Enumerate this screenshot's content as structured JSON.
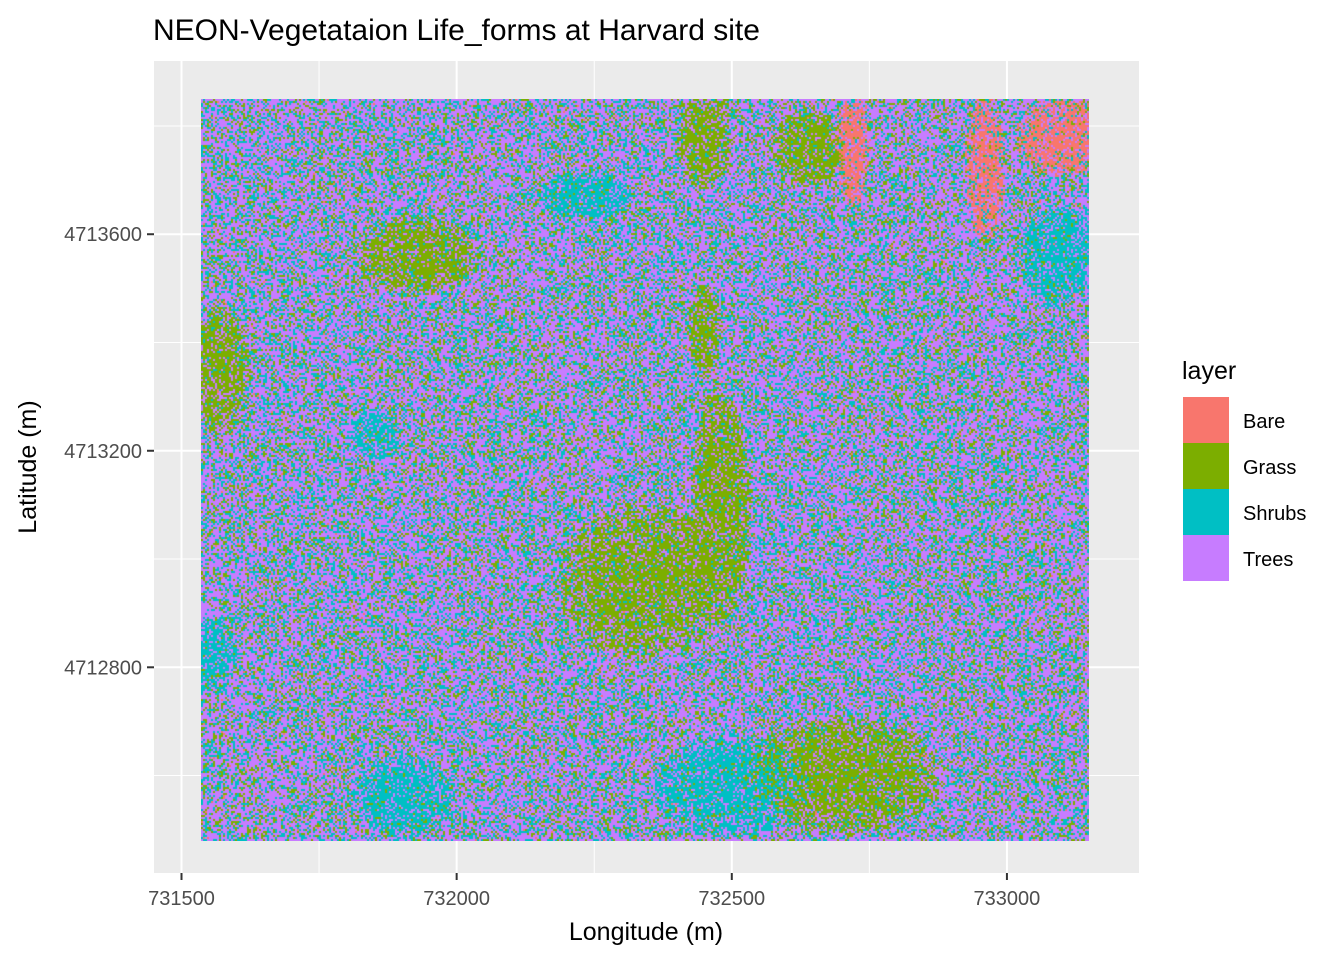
{
  "chart_data": {
    "type": "heatmap",
    "title": "NEON-Vegetataion Life_forms at Harvard site",
    "xlabel": "Longitude (m)",
    "ylabel": "Latitude (m)",
    "xlim": [
      731450,
      733240
    ],
    "ylim": [
      4712420,
      4713920
    ],
    "raster_extent": {
      "x": [
        731535,
        733150
      ],
      "y": [
        4712480,
        4713850
      ]
    },
    "x_ticks": [
      731500,
      732000,
      732500,
      733000
    ],
    "x_tick_labels": [
      "731500",
      "732000",
      "732500",
      "733000"
    ],
    "y_ticks": [
      4712800,
      4713200,
      4713600
    ],
    "y_tick_labels": [
      "4712800",
      "4713200",
      "4713600"
    ],
    "grid": true,
    "panel_background": "#ebebeb",
    "legend": {
      "title": "layer",
      "position": "right",
      "entries": [
        {
          "label": "Bare",
          "color": "#f8766d"
        },
        {
          "label": "Grass",
          "color": "#7cae00"
        },
        {
          "label": "Shrubs",
          "color": "#00bfc4"
        },
        {
          "label": "Trees",
          "color": "#c77cff"
        }
      ]
    },
    "dominant_class": "Trees",
    "patches": [
      {
        "class": "Bare",
        "x": 733100,
        "y": 4713780,
        "rx": 70,
        "ry": 60
      },
      {
        "class": "Bare",
        "x": 732960,
        "y": 4713720,
        "rx": 30,
        "ry": 110
      },
      {
        "class": "Bare",
        "x": 732720,
        "y": 4713760,
        "rx": 25,
        "ry": 90
      },
      {
        "class": "Grass",
        "x": 731930,
        "y": 4713560,
        "rx": 90,
        "ry": 60
      },
      {
        "class": "Grass",
        "x": 732450,
        "y": 4713420,
        "rx": 25,
        "ry": 70
      },
      {
        "class": "Grass",
        "x": 732480,
        "y": 4713100,
        "rx": 45,
        "ry": 180
      },
      {
        "class": "Grass",
        "x": 732340,
        "y": 4712960,
        "rx": 130,
        "ry": 120
      },
      {
        "class": "Grass",
        "x": 732450,
        "y": 4713780,
        "rx": 40,
        "ry": 80
      },
      {
        "class": "Grass",
        "x": 732640,
        "y": 4713760,
        "rx": 60,
        "ry": 60
      },
      {
        "class": "Grass",
        "x": 731570,
        "y": 4713350,
        "rx": 45,
        "ry": 100
      },
      {
        "class": "Grass",
        "x": 732700,
        "y": 4712600,
        "rx": 150,
        "ry": 90
      },
      {
        "class": "Shrubs",
        "x": 732230,
        "y": 4713670,
        "rx": 70,
        "ry": 40
      },
      {
        "class": "Shrubs",
        "x": 731850,
        "y": 4713230,
        "rx": 35,
        "ry": 40
      },
      {
        "class": "Shrubs",
        "x": 731560,
        "y": 4712820,
        "rx": 35,
        "ry": 60
      },
      {
        "class": "Shrubs",
        "x": 733090,
        "y": 4713560,
        "rx": 55,
        "ry": 80
      },
      {
        "class": "Shrubs",
        "x": 732500,
        "y": 4712580,
        "rx": 120,
        "ry": 80
      },
      {
        "class": "Shrubs",
        "x": 731900,
        "y": 4712560,
        "rx": 80,
        "ry": 60
      }
    ]
  }
}
